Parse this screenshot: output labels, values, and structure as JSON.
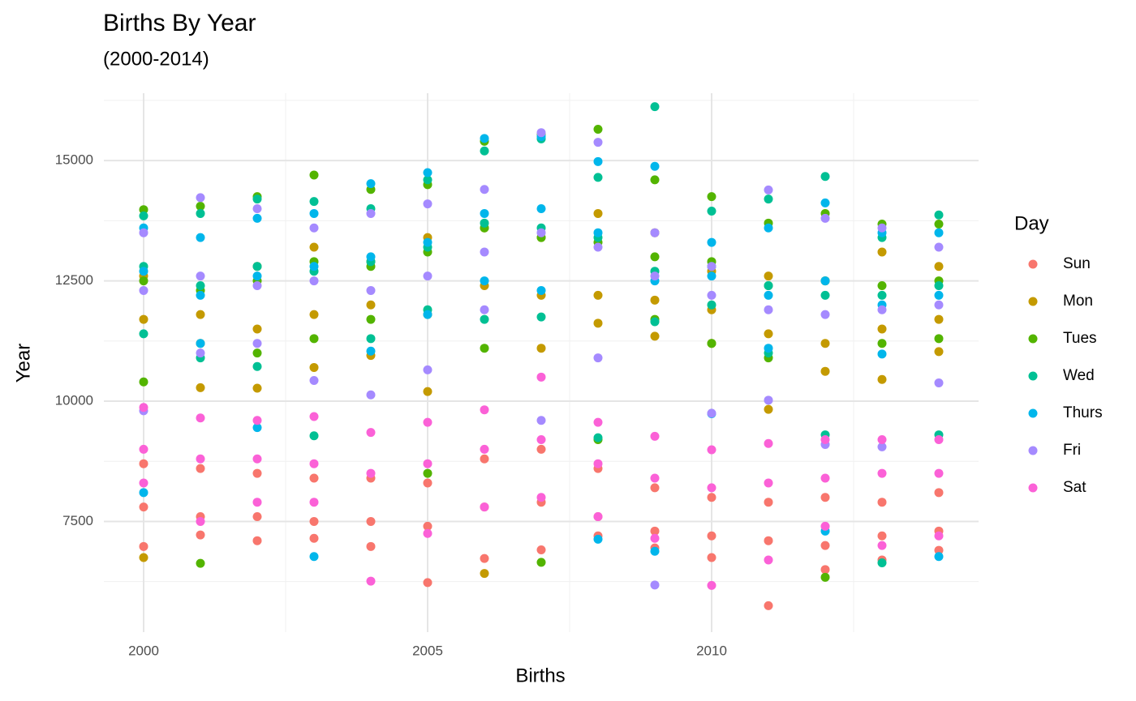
{
  "chart_data": {
    "type": "scatter",
    "title": "Births By Year",
    "subtitle": "(2000-2014)",
    "x_label": "Births",
    "y_label": "Year",
    "legend_title": "Day",
    "legend_position": "right",
    "grid": true,
    "xlim": [
      1999.3,
      2014.7
    ],
    "xticks": [
      2000,
      2005,
      2010
    ],
    "minor_xticks": [
      2002.5,
      2007.5,
      2012.5
    ],
    "ylim": [
      5200,
      16400
    ],
    "yticks": [
      7500,
      10000,
      12500,
      15000
    ],
    "minor_yticks": [
      6250,
      8750,
      11250,
      13750,
      16250
    ],
    "series": [
      {
        "name": "Sun",
        "color": "#F8766D",
        "x": [
          2000,
          2000,
          2000,
          2001,
          2001,
          2001,
          2002,
          2002,
          2002,
          2003,
          2003,
          2003,
          2004,
          2004,
          2004,
          2005,
          2005,
          2005,
          2006,
          2006,
          2006,
          2007,
          2007,
          2007,
          2008,
          2008,
          2008,
          2009,
          2009,
          2009,
          2010,
          2010,
          2010,
          2011,
          2011,
          2011,
          2012,
          2012,
          2012,
          2013,
          2013,
          2013,
          2014,
          2014,
          2014
        ],
        "values": [
          8700,
          7800,
          6980,
          8600,
          7600,
          7220,
          8500,
          7600,
          7100,
          8400,
          7500,
          7150,
          8400,
          7500,
          6980,
          8300,
          7400,
          6230,
          8800,
          7800,
          6730,
          9000,
          7900,
          6910,
          8600,
          7600,
          7200,
          8200,
          7300,
          6950,
          8000,
          7200,
          6750,
          7900,
          7100,
          5750,
          8000,
          7000,
          6500,
          7900,
          7200,
          6700,
          8100,
          7300,
          6900
        ]
      },
      {
        "name": "Mon",
        "color": "#C49A00",
        "x": [
          2000,
          2000,
          2000,
          2001,
          2001,
          2001,
          2002,
          2002,
          2002,
          2003,
          2003,
          2003,
          2004,
          2004,
          2004,
          2005,
          2005,
          2005,
          2006,
          2006,
          2006,
          2007,
          2007,
          2007,
          2008,
          2008,
          2008,
          2009,
          2009,
          2009,
          2010,
          2010,
          2010,
          2011,
          2011,
          2011,
          2012,
          2012,
          2012,
          2013,
          2013,
          2013,
          2014,
          2014,
          2014
        ],
        "values": [
          12600,
          11700,
          6750,
          11800,
          11200,
          10280,
          12800,
          11500,
          10270,
          13200,
          11800,
          10700,
          12900,
          12000,
          10950,
          13400,
          11800,
          10200,
          13600,
          12400,
          6420,
          13400,
          12200,
          11100,
          13900,
          12200,
          11620,
          13500,
          12100,
          11350,
          12700,
          11900,
          11200,
          12600,
          11400,
          9830,
          12500,
          11200,
          10620,
          13100,
          11500,
          10450,
          12800,
          11700,
          11030
        ]
      },
      {
        "name": "Tues",
        "color": "#53B400",
        "x": [
          2000,
          2000,
          2000,
          2001,
          2001,
          2001,
          2002,
          2002,
          2002,
          2003,
          2003,
          2003,
          2004,
          2004,
          2004,
          2005,
          2005,
          2005,
          2006,
          2006,
          2006,
          2007,
          2007,
          2007,
          2008,
          2008,
          2008,
          2009,
          2009,
          2009,
          2010,
          2010,
          2010,
          2011,
          2011,
          2011,
          2012,
          2012,
          2012,
          2013,
          2013,
          2013,
          2014,
          2014,
          2014
        ],
        "values": [
          13980,
          12500,
          10400,
          14050,
          12300,
          6630,
          14250,
          12500,
          11000,
          14700,
          12900,
          11300,
          14400,
          12800,
          11700,
          14500,
          13100,
          8500,
          15400,
          13600,
          11100,
          15550,
          13400,
          6650,
          15650,
          13300,
          9200,
          14600,
          13000,
          11700,
          14250,
          12900,
          11200,
          13700,
          12400,
          10900,
          13900,
          12500,
          6340,
          13680,
          12400,
          11200,
          13680,
          12500,
          11300
        ]
      },
      {
        "name": "Wed",
        "color": "#00C094",
        "x": [
          2000,
          2000,
          2000,
          2001,
          2001,
          2001,
          2002,
          2002,
          2002,
          2003,
          2003,
          2003,
          2004,
          2004,
          2004,
          2005,
          2005,
          2005,
          2006,
          2006,
          2006,
          2007,
          2007,
          2007,
          2008,
          2008,
          2008,
          2009,
          2009,
          2009,
          2010,
          2010,
          2010,
          2011,
          2011,
          2011,
          2012,
          2012,
          2012,
          2013,
          2013,
          2013,
          2014,
          2014,
          2014
        ],
        "values": [
          13850,
          12800,
          11400,
          13900,
          12400,
          10900,
          14200,
          12800,
          10720,
          14150,
          12700,
          9280,
          14000,
          12900,
          11300,
          14600,
          13200,
          11900,
          15200,
          13700,
          11700,
          15450,
          13600,
          11750,
          14650,
          13400,
          9240,
          16120,
          12700,
          11650,
          13950,
          12800,
          12000,
          14200,
          12400,
          11000,
          14670,
          12200,
          9300,
          13400,
          12200,
          6640,
          13870,
          12400,
          9300
        ]
      },
      {
        "name": "Thurs",
        "color": "#00B6EB",
        "x": [
          2000,
          2000,
          2000,
          2001,
          2001,
          2001,
          2002,
          2002,
          2002,
          2003,
          2003,
          2003,
          2004,
          2004,
          2004,
          2005,
          2005,
          2005,
          2006,
          2006,
          2006,
          2007,
          2007,
          2007,
          2008,
          2008,
          2008,
          2009,
          2009,
          2009,
          2010,
          2010,
          2010,
          2011,
          2011,
          2011,
          2012,
          2012,
          2012,
          2013,
          2013,
          2013,
          2014,
          2014,
          2014
        ],
        "values": [
          13600,
          12700,
          8100,
          13400,
          12200,
          11200,
          13800,
          12600,
          9450,
          13900,
          12800,
          6770,
          14520,
          13000,
          11040,
          14750,
          13300,
          11800,
          15460,
          13900,
          12500,
          15500,
          14000,
          12300,
          14980,
          13500,
          7130,
          14880,
          12500,
          6880,
          13300,
          12600,
          9740,
          13600,
          12200,
          11100,
          14120,
          12500,
          7300,
          13500,
          12000,
          10980,
          13500,
          12200,
          6770
        ]
      },
      {
        "name": "Fri",
        "color": "#A58AFF",
        "x": [
          2000,
          2000,
          2000,
          2001,
          2001,
          2001,
          2002,
          2002,
          2002,
          2003,
          2003,
          2003,
          2004,
          2004,
          2004,
          2005,
          2005,
          2005,
          2006,
          2006,
          2006,
          2007,
          2007,
          2007,
          2008,
          2008,
          2008,
          2009,
          2009,
          2009,
          2010,
          2010,
          2010,
          2011,
          2011,
          2011,
          2012,
          2012,
          2012,
          2013,
          2013,
          2013,
          2014,
          2014,
          2014
        ],
        "values": [
          13500,
          12300,
          9800,
          14230,
          12600,
          11000,
          14000,
          12400,
          11200,
          13600,
          12500,
          10430,
          13900,
          12300,
          10130,
          14100,
          12600,
          10650,
          14400,
          13100,
          11900,
          15580,
          13500,
          9600,
          15380,
          13200,
          10900,
          13500,
          12600,
          6180,
          12800,
          12200,
          9750,
          14390,
          11900,
          10020,
          13800,
          11800,
          9100,
          13600,
          11900,
          9050,
          13200,
          12000,
          10380
        ]
      },
      {
        "name": "Sat",
        "color": "#FB61D7",
        "x": [
          2000,
          2000,
          2000,
          2001,
          2001,
          2001,
          2002,
          2002,
          2002,
          2003,
          2003,
          2003,
          2004,
          2004,
          2004,
          2005,
          2005,
          2005,
          2006,
          2006,
          2006,
          2007,
          2007,
          2007,
          2008,
          2008,
          2008,
          2009,
          2009,
          2009,
          2010,
          2010,
          2010,
          2011,
          2011,
          2011,
          2012,
          2012,
          2012,
          2013,
          2013,
          2013,
          2014,
          2014,
          2014
        ],
        "values": [
          9870,
          9000,
          8300,
          9650,
          8800,
          7500,
          9600,
          8800,
          7900,
          9680,
          8700,
          7900,
          9350,
          8500,
          6260,
          9560,
          8700,
          7250,
          9820,
          9000,
          7800,
          10500,
          9200,
          8000,
          9560,
          8700,
          7600,
          9270,
          8400,
          7150,
          8990,
          8200,
          6170,
          9120,
          8300,
          6700,
          9200,
          8400,
          7400,
          9200,
          8500,
          7000,
          9200,
          8500,
          7200
        ]
      }
    ]
  }
}
